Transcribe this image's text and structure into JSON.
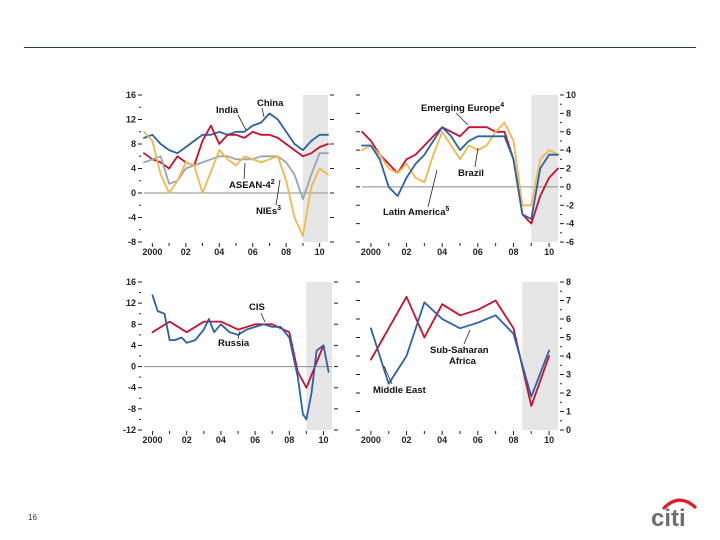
{
  "page": {
    "number": "16"
  },
  "logo": {
    "text": "citi",
    "arc_color": "#e31b23",
    "text_color": "#6d6e71"
  },
  "colors": {
    "rule": "#1f3a5f",
    "shade": "#e6e6e6",
    "zero_line": "#8c8c8c"
  },
  "chart_data": [
    {
      "type": "line",
      "id": "asia",
      "ylim": [
        -8,
        16
      ],
      "yticks": [
        "16",
        "12",
        "8",
        "4",
        "0",
        "-4",
        "-8"
      ],
      "y_axis_side": "left",
      "xlim": [
        1999.5,
        2010.5
      ],
      "xticks": [
        {
          "v": 2000,
          "label": "2000"
        },
        {
          "v": 2002,
          "label": "02"
        },
        {
          "v": 2004,
          "label": "04"
        },
        {
          "v": 2006,
          "label": "06"
        },
        {
          "v": 2008,
          "label": "08"
        },
        {
          "v": 2010,
          "label": "10"
        }
      ],
      "shade": [
        2009,
        2010.5
      ],
      "series": [
        {
          "name": "China",
          "color": "#2b62a6",
          "x": [
            1999.5,
            2000,
            2000.5,
            2001,
            2001.5,
            2002,
            2002.5,
            2003,
            2003.5,
            2004,
            2004.5,
            2005,
            2005.5,
            2006,
            2006.5,
            2007,
            2007.5,
            2008,
            2008.5,
            2009,
            2009.5,
            2010,
            2010.5
          ],
          "y": [
            9,
            9.5,
            8,
            7,
            6.5,
            7.5,
            8.5,
            9.5,
            9.5,
            10,
            9.5,
            10,
            10,
            11,
            11.5,
            13,
            12,
            10,
            8,
            7,
            8.5,
            9.5,
            9.5
          ]
        },
        {
          "name": "India",
          "color": "#c8102e",
          "x": [
            1999.5,
            2000,
            2000.5,
            2001,
            2001.5,
            2002,
            2002.5,
            2003,
            2003.5,
            2004,
            2004.5,
            2005,
            2005.5,
            2006,
            2006.5,
            2007,
            2007.5,
            2008,
            2008.5,
            2009,
            2009.5,
            2010,
            2010.5
          ],
          "y": [
            6.5,
            5.5,
            5,
            4,
            6,
            5,
            4.5,
            8.5,
            11,
            8,
            9.5,
            9.5,
            9,
            10,
            9.5,
            9.5,
            9,
            8,
            7,
            6,
            6.5,
            7.5,
            8
          ]
        },
        {
          "name": "ASEAN-4",
          "label_sup": "2",
          "color": "#9aa5b0",
          "x": [
            1999.5,
            2000,
            2000.5,
            2001,
            2001.5,
            2002,
            2002.5,
            2003,
            2003.5,
            2004,
            2004.5,
            2005,
            2005.5,
            2006,
            2006.5,
            2007,
            2007.5,
            2008,
            2008.5,
            2009,
            2009.5,
            2010,
            2010.5
          ],
          "y": [
            5,
            5.5,
            6,
            1.5,
            2,
            4,
            4.5,
            5,
            5.5,
            6,
            6,
            5.5,
            5.5,
            5.5,
            6,
            6,
            6,
            5,
            3,
            -1,
            3,
            6.5,
            6.5
          ]
        },
        {
          "name": "NIEs",
          "label_sup": "3",
          "color": "#f2b84b",
          "x": [
            1999.5,
            2000,
            2000.5,
            2001,
            2001.5,
            2002,
            2002.5,
            2003,
            2003.5,
            2004,
            2004.5,
            2005,
            2005.5,
            2006,
            2006.5,
            2007,
            2007.5,
            2008,
            2008.5,
            2009,
            2009.5,
            2010,
            2010.5
          ],
          "y": [
            10,
            8.5,
            3,
            0,
            2,
            5,
            4.5,
            0,
            3.5,
            7,
            5.5,
            4.5,
            6,
            5.5,
            5,
            5.5,
            6,
            2,
            -4,
            -7,
            1,
            4,
            3
          ]
        }
      ]
    },
    {
      "type": "line",
      "id": "emerging",
      "ylim": [
        -6,
        10
      ],
      "yticks": [
        "10",
        "8",
        "6",
        "4",
        "2",
        "0",
        "-2",
        "-4",
        "-6"
      ],
      "y_axis_side": "right",
      "xlim": [
        1999.5,
        2010.5
      ],
      "xticks": [
        {
          "v": 2000,
          "label": "2000"
        },
        {
          "v": 2002,
          "label": "02"
        },
        {
          "v": 2004,
          "label": "04"
        },
        {
          "v": 2006,
          "label": "06"
        },
        {
          "v": 2008,
          "label": "08"
        },
        {
          "v": 2010,
          "label": "10"
        }
      ],
      "shade": [
        2009,
        2010.5
      ],
      "series": [
        {
          "name": "Emerging Europe",
          "label_sup": "4",
          "color": "#c8102e",
          "x": [
            1999.5,
            2000,
            2000.5,
            2001,
            2001.5,
            2002,
            2002.5,
            2003,
            2003.5,
            2004,
            2004.5,
            2005,
            2005.5,
            2006,
            2006.5,
            2007,
            2007.5,
            2008,
            2008.5,
            2009,
            2009.5,
            2010,
            2010.5
          ],
          "y": [
            6,
            5,
            3.5,
            2.5,
            1.5,
            3,
            3.5,
            4.5,
            5.5,
            6.5,
            6,
            5.5,
            6.5,
            6.5,
            6.5,
            6,
            6,
            3,
            -3,
            -4,
            -1,
            1,
            2
          ]
        },
        {
          "name": "Brazil",
          "color": "#f2b84b",
          "x": [
            1999.5,
            2000,
            2000.5,
            2001,
            2001.5,
            2002,
            2002.5,
            2003,
            2003.5,
            2004,
            2004.5,
            2005,
            2005.5,
            2006,
            2006.5,
            2007,
            2007.5,
            2008,
            2008.5,
            2009,
            2009.5,
            2010,
            2010.5
          ],
          "y": [
            4,
            4.5,
            3.5,
            2,
            1.5,
            2.5,
            1,
            0.5,
            3.5,
            6,
            4.5,
            3,
            4.5,
            4,
            4.5,
            6,
            7,
            5,
            -2,
            -2,
            3,
            4,
            3.5
          ]
        },
        {
          "name": "Latin America",
          "label_sup": "5",
          "color": "#2b62a6",
          "x": [
            1999.5,
            2000,
            2000.5,
            2001,
            2001.5,
            2002,
            2002.5,
            2003,
            2003.5,
            2004,
            2004.5,
            2005,
            2005.5,
            2006,
            2006.5,
            2007,
            2007.5,
            2008,
            2008.5,
            2009,
            2009.5,
            2010,
            2010.5
          ],
          "y": [
            4.5,
            4.5,
            3,
            0,
            -1,
            1,
            2.5,
            3.5,
            5,
            6.5,
            5.5,
            4,
            5,
            5.5,
            5.5,
            5.5,
            5.5,
            3,
            -3,
            -3.5,
            2,
            3.5,
            3.5
          ]
        }
      ]
    },
    {
      "type": "line",
      "id": "cis",
      "ylim": [
        -12,
        16
      ],
      "yticks": [
        "16",
        "12",
        "8",
        "4",
        "0",
        "-4",
        "-8",
        "-12"
      ],
      "y_axis_side": "left",
      "xlim": [
        1999.5,
        2010.5
      ],
      "xticks": [
        {
          "v": 2000,
          "label": "2000"
        },
        {
          "v": 2002,
          "label": "02"
        },
        {
          "v": 2004,
          "label": "04"
        },
        {
          "v": 2006,
          "label": "06"
        },
        {
          "v": 2008,
          "label": "08"
        },
        {
          "v": 2010,
          "label": "10"
        }
      ],
      "shade": [
        2009,
        2010.5
      ],
      "series": [
        {
          "name": "CIS",
          "color": "#c8102e",
          "x": [
            2000,
            2001,
            2002,
            2003,
            2004,
            2005,
            2006,
            2007,
            2008,
            2008.5,
            2009,
            2009.5,
            2010
          ],
          "y": [
            6.5,
            8.5,
            6.5,
            8.5,
            8.5,
            7,
            8,
            8,
            6.5,
            -1,
            -4,
            0,
            4
          ]
        },
        {
          "name": "Russia",
          "color": "#2b62a6",
          "x": [
            2000,
            2000.3,
            2000.7,
            2001,
            2001.3,
            2001.7,
            2002,
            2002.5,
            2003,
            2003.3,
            2003.6,
            2004,
            2004.5,
            2005,
            2005.5,
            2006,
            2006.5,
            2007,
            2007.5,
            2008,
            2008.5,
            2008.8,
            2009,
            2009.3,
            2009.6,
            2010,
            2010.3
          ],
          "y": [
            13.5,
            10.5,
            10,
            5,
            5,
            5.5,
            4.5,
            5,
            7,
            9,
            6.5,
            8,
            6.5,
            6,
            7,
            7.5,
            8,
            7.5,
            7.5,
            5.5,
            -2,
            -9,
            -10,
            -5,
            3,
            4,
            -1
          ]
        }
      ]
    },
    {
      "type": "line",
      "id": "middle-east-africa",
      "ylim": [
        0,
        8
      ],
      "yticks": [
        "8",
        "7",
        "6",
        "5",
        "4",
        "3",
        "2",
        "1",
        "0"
      ],
      "y_axis_side": "right",
      "xlim": [
        1999.5,
        2010.5
      ],
      "xticks": [
        {
          "v": 2000,
          "label": "2000"
        },
        {
          "v": 2002,
          "label": "02"
        },
        {
          "v": 2004,
          "label": "04"
        },
        {
          "v": 2006,
          "label": "06"
        },
        {
          "v": 2008,
          "label": "08"
        },
        {
          "v": 2010,
          "label": "10"
        }
      ],
      "shade": [
        2008.5,
        2010.5
      ],
      "series": [
        {
          "name": "Sub-Saharan Africa",
          "color": "#c8102e",
          "x": [
            2000,
            2001,
            2002,
            2003,
            2004,
            2005,
            2006,
            2007,
            2008,
            2009,
            2010
          ],
          "y": [
            3.8,
            5.5,
            7.2,
            5,
            6.8,
            6.2,
            6.5,
            7,
            5.5,
            1.3,
            4
          ]
        },
        {
          "name": "Middle East",
          "color": "#2b62a6",
          "x": [
            2000,
            2001,
            2002,
            2003,
            2004,
            2005,
            2006,
            2007,
            2008,
            2009,
            2010
          ],
          "y": [
            5.5,
            2.5,
            4,
            6.9,
            6,
            5.5,
            5.8,
            6.2,
            5.2,
            1.8,
            4.3
          ]
        }
      ]
    }
  ],
  "labels": {
    "china": "China",
    "india": "India",
    "asean": "ASEAN-4",
    "asean_sup": "2",
    "nies": "NIEs",
    "nies_sup": "3",
    "emerging_europe": "Emerging Europe",
    "emerging_europe_sup": "4",
    "brazil": "Brazil",
    "latin_america": "Latin America",
    "latin_america_sup": "5",
    "cis": "CIS",
    "russia": "Russia",
    "ssa_line1": "Sub-Saharan",
    "ssa_line2": "Africa",
    "middle_east": "Middle East"
  }
}
